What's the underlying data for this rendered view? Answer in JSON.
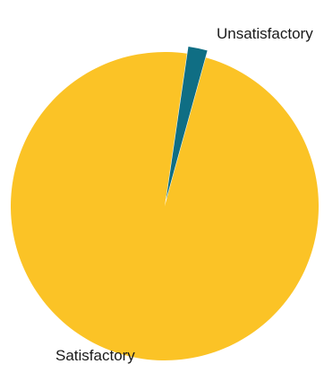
{
  "chart_data": {
    "type": "pie",
    "categories": [
      "Satisfactory",
      "Unsatisfactory"
    ],
    "values": [
      98,
      2
    ],
    "colors": [
      "#FBC326",
      "#0F6E84"
    ],
    "exploded": "Unsatisfactory",
    "legend": "none"
  }
}
